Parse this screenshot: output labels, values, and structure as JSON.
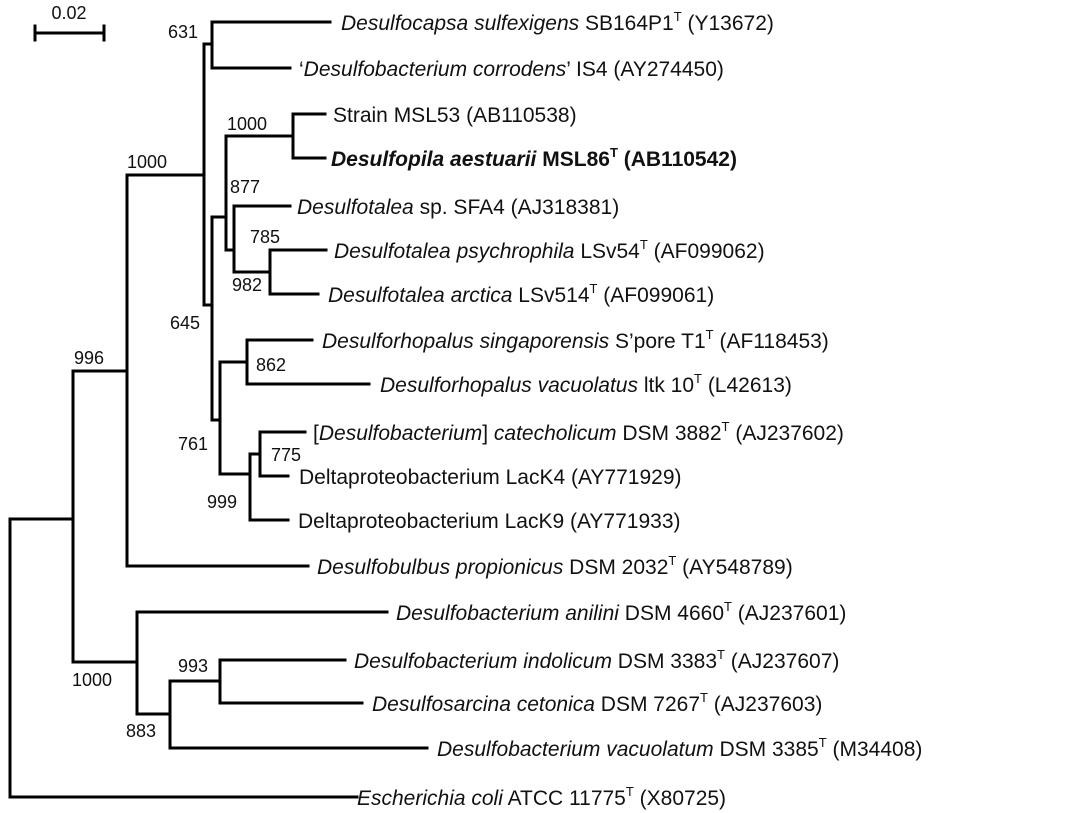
{
  "scale_bar": {
    "label": "0.02"
  },
  "taxa": [
    {
      "id": "desulfocapsa",
      "parts": [
        {
          "t": "Desulfocapsa sulfexigens",
          "i": true
        },
        {
          "t": " SB164P1"
        },
        {
          "t": "T",
          "sup": true
        },
        {
          "t": " (Y13672)"
        }
      ]
    },
    {
      "id": "corrodens",
      "parts": [
        {
          "t": "‘"
        },
        {
          "t": "Desulfobacterium corrodens",
          "i": true
        },
        {
          "t": "’ IS4 (AY274450)"
        }
      ]
    },
    {
      "id": "msl53",
      "parts": [
        {
          "t": "Strain MSL53 (AB110538)"
        }
      ]
    },
    {
      "id": "msl86",
      "bold": true,
      "parts": [
        {
          "t": "Desulfopila aestuarii",
          "i": true
        },
        {
          "t": " MSL86"
        },
        {
          "t": "T",
          "sup": true
        },
        {
          "t": " (AB110542)"
        }
      ]
    },
    {
      "id": "sfa4",
      "parts": [
        {
          "t": "Desulfotalea",
          "i": true
        },
        {
          "t": " sp. SFA4 (AJ318381)"
        }
      ]
    },
    {
      "id": "psychrophila",
      "parts": [
        {
          "t": "Desulfotalea psychrophila",
          "i": true
        },
        {
          "t": " LSv54"
        },
        {
          "t": "T",
          "sup": true
        },
        {
          "t": " (AF099062)"
        }
      ]
    },
    {
      "id": "arctica",
      "parts": [
        {
          "t": "Desulfotalea arctica",
          "i": true
        },
        {
          "t": " LSv514"
        },
        {
          "t": "T",
          "sup": true
        },
        {
          "t": " (AF099061)"
        }
      ]
    },
    {
      "id": "singaporensis",
      "parts": [
        {
          "t": "Desulforhopalus singaporensis",
          "i": true
        },
        {
          "t": " S’pore T1"
        },
        {
          "t": "T",
          "sup": true
        },
        {
          "t": " (AF118453)"
        }
      ]
    },
    {
      "id": "vacuolatus",
      "parts": [
        {
          "t": "Desulforhopalus vacuolatus",
          "i": true
        },
        {
          "t": " ltk 10"
        },
        {
          "t": "T",
          "sup": true
        },
        {
          "t": " (L42613)"
        }
      ]
    },
    {
      "id": "catecholicum",
      "parts": [
        {
          "t": "["
        },
        {
          "t": "Desulfobacterium",
          "i": true
        },
        {
          "t": "] "
        },
        {
          "t": "catecholicum",
          "i": true
        },
        {
          "t": " DSM 3882"
        },
        {
          "t": "T",
          "sup": true
        },
        {
          "t": " (AJ237602)"
        }
      ]
    },
    {
      "id": "lack4",
      "parts": [
        {
          "t": "Deltaproteobacterium LacK4 (AY771929)"
        }
      ]
    },
    {
      "id": "lack9",
      "parts": [
        {
          "t": "Deltaproteobacterium LacK9 (AY771933)"
        }
      ]
    },
    {
      "id": "propionicus",
      "parts": [
        {
          "t": "Desulfobulbus propionicus",
          "i": true
        },
        {
          "t": " DSM 2032"
        },
        {
          "t": "T",
          "sup": true
        },
        {
          "t": " (AY548789)"
        }
      ]
    },
    {
      "id": "anilini",
      "parts": [
        {
          "t": "Desulfobacterium anilini",
          "i": true
        },
        {
          "t": " DSM 4660"
        },
        {
          "t": "T",
          "sup": true
        },
        {
          "t": " (AJ237601)"
        }
      ]
    },
    {
      "id": "indolicum",
      "parts": [
        {
          "t": "Desulfobacterium indolicum",
          "i": true
        },
        {
          "t": " DSM 3383"
        },
        {
          "t": "T",
          "sup": true
        },
        {
          "t": " (AJ237607)"
        }
      ]
    },
    {
      "id": "cetonica",
      "parts": [
        {
          "t": "Desulfosarcina cetonica",
          "i": true
        },
        {
          "t": " DSM 7267"
        },
        {
          "t": "T",
          "sup": true
        },
        {
          "t": " (AJ237603)"
        }
      ]
    },
    {
      "id": "vacuolatum",
      "parts": [
        {
          "t": "Desulfobacterium vacuolatum",
          "i": true
        },
        {
          "t": " DSM 3385"
        },
        {
          "t": "T",
          "sup": true
        },
        {
          "t": " (M34408)"
        }
      ]
    },
    {
      "id": "ecoli",
      "parts": [
        {
          "t": "Escherichia coli",
          "i": true
        },
        {
          "t": " ATCC 11775"
        },
        {
          "t": "T",
          "sup": true
        },
        {
          "t": " (X80725)"
        }
      ]
    }
  ],
  "bootstrap": {
    "b631": "631",
    "b1000a": "1000",
    "b1000b": "1000",
    "b877": "877",
    "b785": "785",
    "b982": "982",
    "b645": "645",
    "b996": "996",
    "b862": "862",
    "b761": "761",
    "b775": "775",
    "b999": "999",
    "b1000c": "1000",
    "b993": "993",
    "b883": "883"
  }
}
